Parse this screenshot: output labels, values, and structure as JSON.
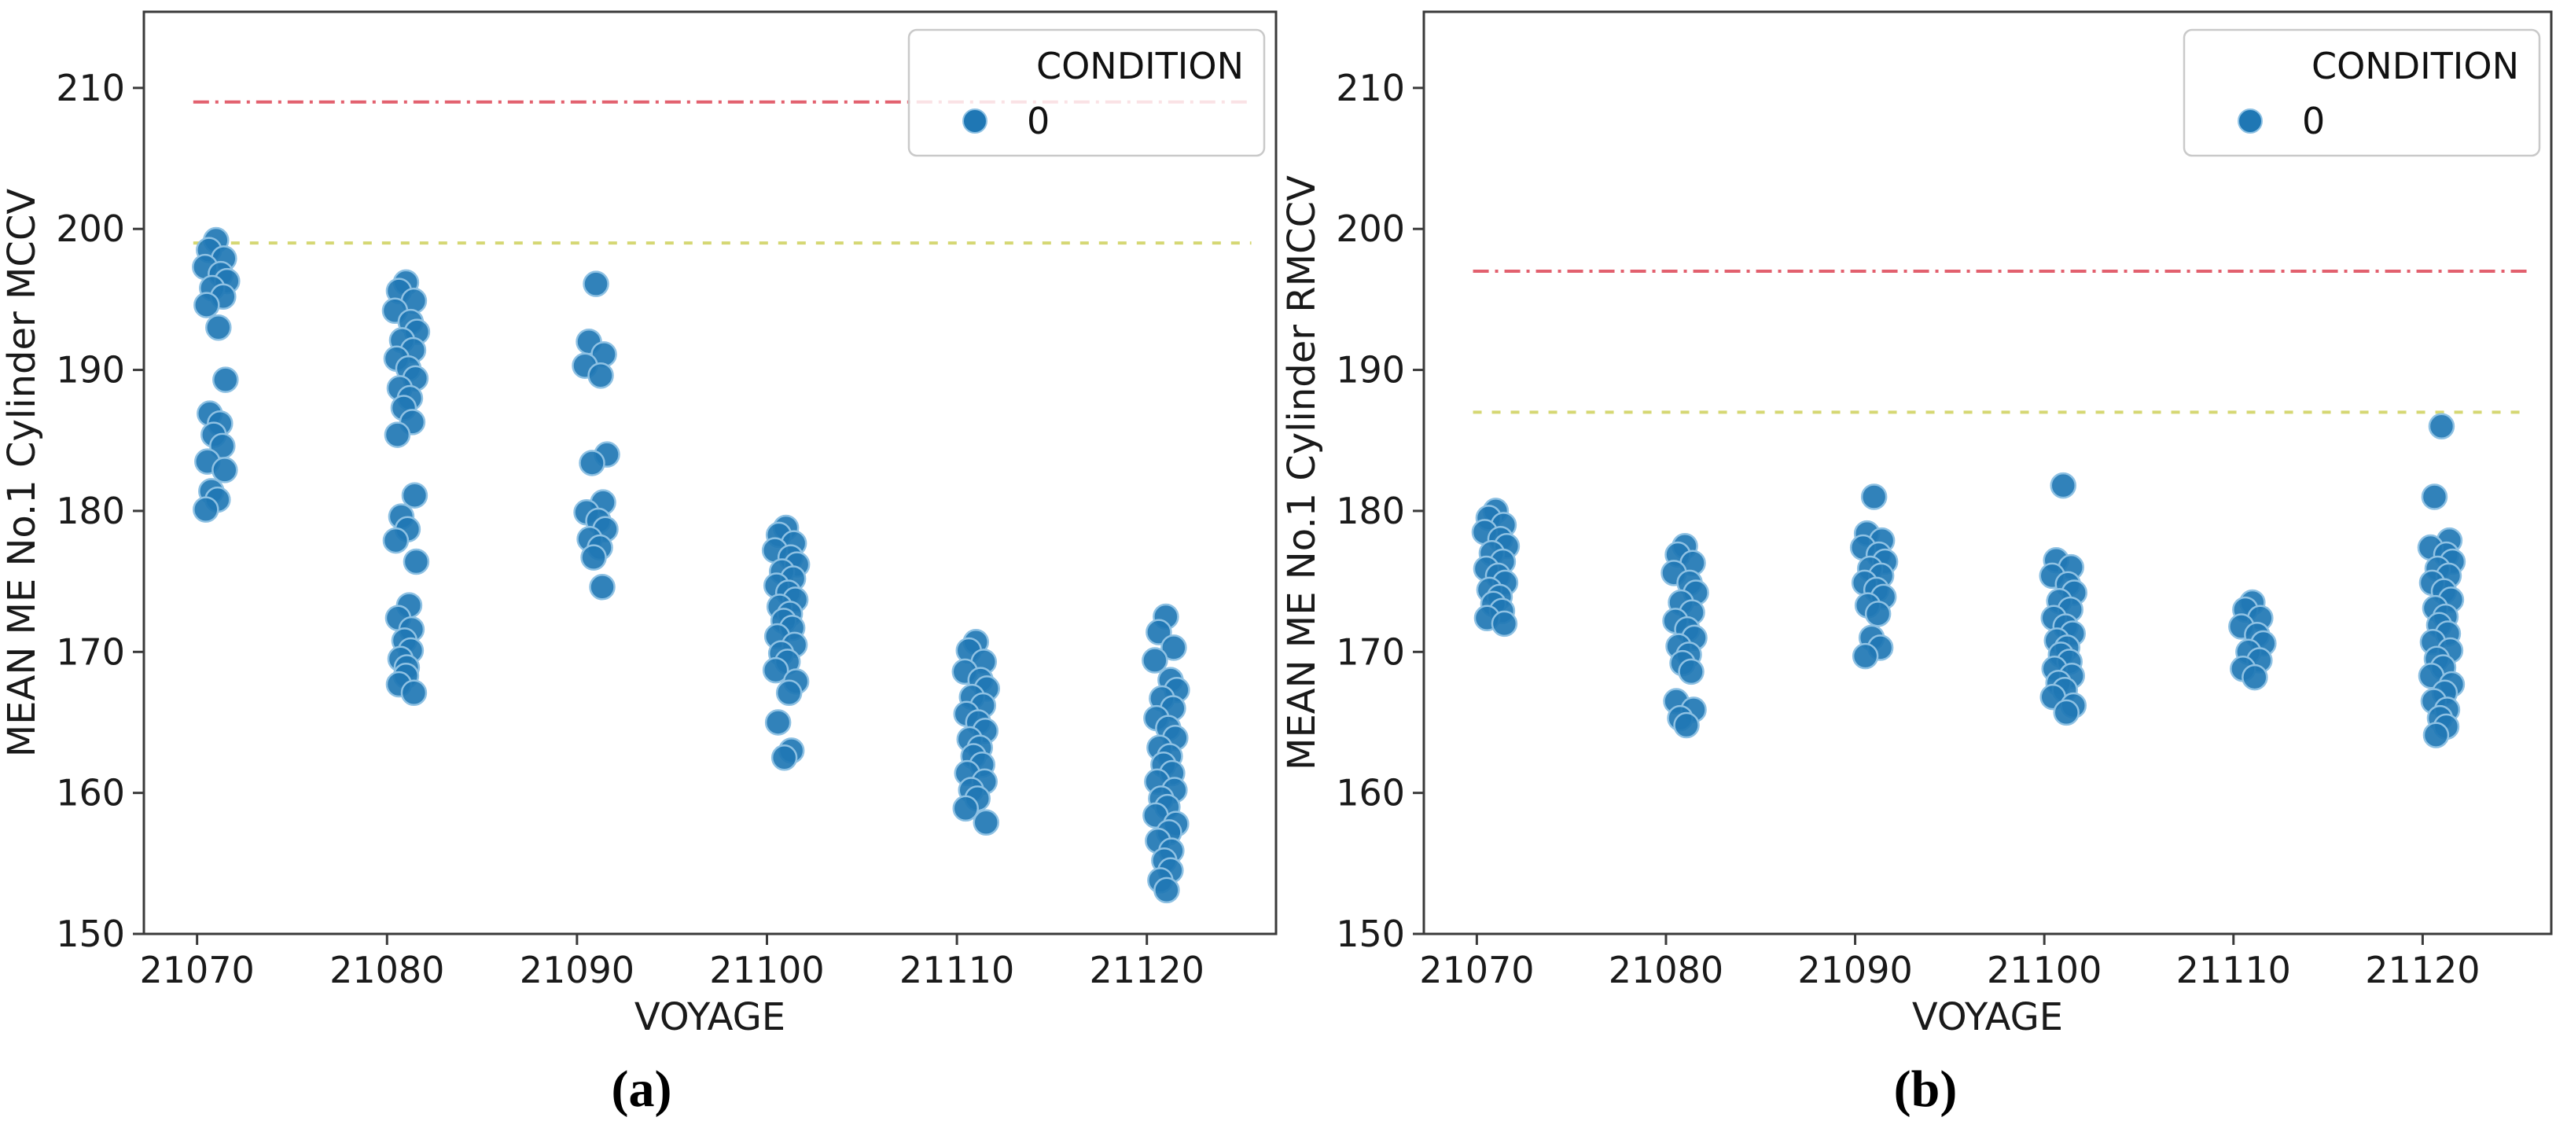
{
  "figure": {
    "background": "#ffffff",
    "axis_color": "#3a3a3a",
    "tick_label_color": "#1a1a1a",
    "point_color": "#1f77b4",
    "point_edge_color": "#8ec1e3"
  },
  "chart_data": [
    {
      "type": "scatter",
      "caption": "(a)",
      "xlabel": "VOYAGE",
      "ylabel": "MEAN ME No.1 Cylinder MCCV",
      "xlim": [
        21067.2,
        21126.8
      ],
      "ylim": [
        150,
        215.4
      ],
      "x_ticks": [
        21070,
        21080,
        21090,
        21100,
        21110,
        21120
      ],
      "y_ticks": [
        150,
        160,
        170,
        180,
        190,
        200,
        210
      ],
      "grid": false,
      "legend": {
        "title": "CONDITION",
        "position": "upper right",
        "items": [
          {
            "label": "0",
            "marker_color": "#1f77b4"
          }
        ]
      },
      "ref_lines": [
        {
          "name": "red-dashdot-limit",
          "y": 209,
          "color": "#e2606e",
          "style": "dashdot"
        },
        {
          "name": "yellow-dashed-limit",
          "y": 199,
          "color": "#d5d773",
          "style": "dashed"
        }
      ],
      "series": [
        {
          "name": "0",
          "color": "#1f77b4",
          "clusters": [
            {
              "voyage": 21071,
              "values": [
                199.2,
                198.5,
                197.9,
                197.3,
                196.8,
                196.3,
                195.8,
                195.2,
                194.6,
                193.0,
                189.3,
                186.9,
                186.2,
                185.4,
                184.6,
                183.5,
                182.9,
                181.4,
                180.8,
                180.1
              ]
            },
            {
              "voyage": 21081,
              "values": [
                196.2,
                195.6,
                194.9,
                194.2,
                193.4,
                192.7,
                192.1,
                191.4,
                190.8,
                190.1,
                189.4,
                188.7,
                188.0,
                187.3,
                186.3,
                185.4,
                181.1,
                179.6,
                178.7,
                177.9,
                176.4,
                173.3,
                172.4,
                171.6,
                170.8,
                170.1,
                169.5,
                168.9,
                168.3,
                167.7,
                167.1
              ]
            },
            {
              "voyage": 21091,
              "values": [
                196.1,
                192.0,
                191.1,
                190.3,
                189.6,
                184.0,
                183.4,
                180.6,
                179.9,
                179.3,
                178.7,
                178.0,
                177.4,
                176.7,
                174.6
              ]
            },
            {
              "voyage": 21101,
              "values": [
                178.8,
                178.3,
                177.7,
                177.2,
                176.7,
                176.2,
                175.7,
                175.2,
                174.7,
                174.2,
                173.7,
                173.2,
                172.7,
                172.2,
                171.7,
                171.1,
                170.5,
                169.9,
                169.3,
                168.7,
                167.9,
                167.1,
                165.0,
                163.0,
                162.5
              ]
            },
            {
              "voyage": 21111,
              "values": [
                170.7,
                170.1,
                169.3,
                168.6,
                168.0,
                167.4,
                166.8,
                166.2,
                165.6,
                165.0,
                164.4,
                163.8,
                163.2,
                162.6,
                162.0,
                161.4,
                160.8,
                160.2,
                159.6,
                158.9,
                157.9
              ]
            },
            {
              "voyage": 21121,
              "values": [
                172.5,
                171.4,
                170.3,
                169.4,
                168.0,
                167.3,
                166.7,
                166.0,
                165.3,
                164.6,
                163.9,
                163.2,
                162.6,
                162.0,
                161.4,
                160.8,
                160.2,
                159.6,
                159.0,
                158.4,
                157.8,
                157.2,
                156.6,
                155.9,
                155.2,
                154.5,
                153.8,
                153.1
              ]
            }
          ]
        }
      ]
    },
    {
      "type": "scatter",
      "caption": "(b)",
      "xlabel": "VOYAGE",
      "ylabel": "MEAN ME No.1 Cylinder RMCCV",
      "xlim": [
        21067.2,
        21126.8
      ],
      "ylim": [
        150,
        215.4
      ],
      "x_ticks": [
        21070,
        21080,
        21090,
        21100,
        21110,
        21120
      ],
      "y_ticks": [
        150,
        160,
        170,
        180,
        190,
        200,
        210
      ],
      "grid": false,
      "legend": {
        "title": "CONDITION",
        "position": "upper right",
        "items": [
          {
            "label": "0",
            "marker_color": "#1f77b4"
          }
        ]
      },
      "ref_lines": [
        {
          "name": "red-dashdot-limit",
          "y": 197,
          "color": "#e2606e",
          "style": "dashdot"
        },
        {
          "name": "yellow-dashed-limit",
          "y": 187,
          "color": "#d5d773",
          "style": "dashed"
        }
      ],
      "series": [
        {
          "name": "0",
          "color": "#1f77b4",
          "clusters": [
            {
              "voyage": 21071,
              "values": [
                180.0,
                179.5,
                179.0,
                178.5,
                178.0,
                177.5,
                177.0,
                176.4,
                175.9,
                175.4,
                174.9,
                174.4,
                173.9,
                173.4,
                172.9,
                172.4,
                172.0
              ]
            },
            {
              "voyage": 21081,
              "values": [
                177.5,
                176.9,
                176.3,
                175.6,
                174.9,
                174.2,
                173.5,
                172.8,
                172.2,
                171.6,
                171.0,
                170.4,
                169.8,
                169.2,
                168.6,
                166.5,
                165.9,
                165.3,
                164.8
              ]
            },
            {
              "voyage": 21091,
              "values": [
                181.0,
                178.4,
                177.9,
                177.4,
                176.9,
                176.4,
                175.9,
                175.4,
                174.9,
                174.4,
                173.9,
                173.3,
                172.7,
                171.0,
                170.3,
                169.7
              ]
            },
            {
              "voyage": 21101,
              "values": [
                181.8,
                176.5,
                176.0,
                175.4,
                174.8,
                174.2,
                173.6,
                173.0,
                172.4,
                171.8,
                171.3,
                170.8,
                170.3,
                169.8,
                169.3,
                168.8,
                168.3,
                167.8,
                167.3,
                166.8,
                166.2,
                165.7
              ]
            },
            {
              "voyage": 21111,
              "values": [
                173.5,
                173.0,
                172.4,
                171.8,
                171.2,
                170.6,
                170.0,
                169.4,
                168.8,
                168.2
              ]
            },
            {
              "voyage": 21121,
              "values": [
                186.0,
                181.0,
                177.9,
                177.4,
                176.9,
                176.4,
                175.9,
                175.4,
                174.9,
                174.3,
                173.7,
                173.1,
                172.5,
                171.9,
                171.3,
                170.7,
                170.1,
                169.5,
                168.9,
                168.3,
                167.7,
                167.1,
                166.5,
                165.9,
                165.3,
                164.7,
                164.1
              ]
            }
          ]
        }
      ]
    }
  ]
}
